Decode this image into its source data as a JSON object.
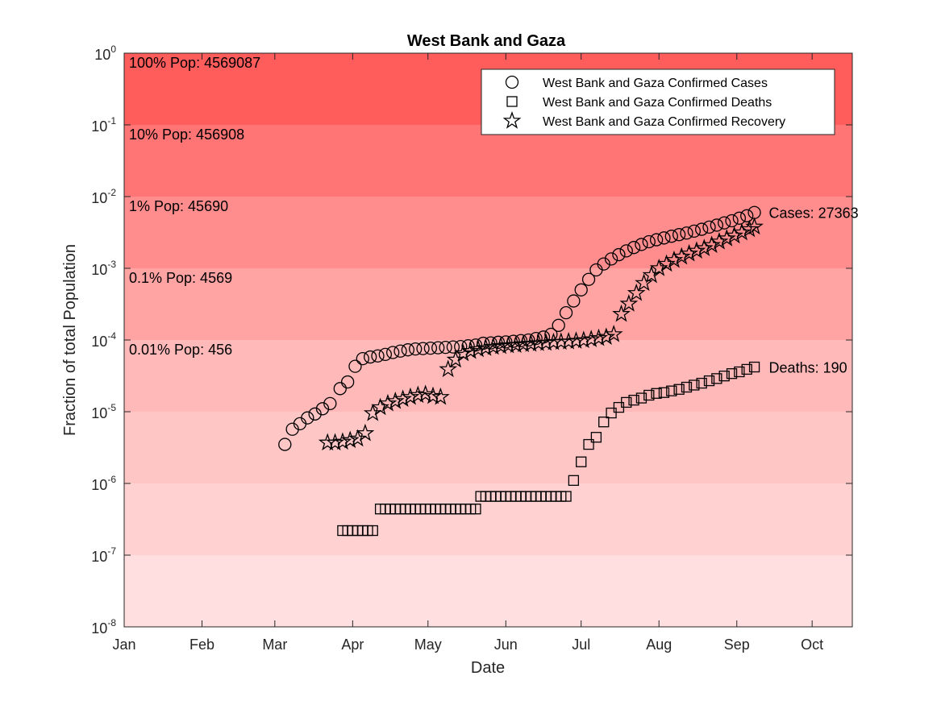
{
  "chart_data": {
    "type": "scatter",
    "title": "West Bank and Gaza",
    "xlabel": "Date",
    "ylabel": "Fraction of total Population",
    "y_scale": "log",
    "ylim": [
      1e-08,
      1
    ],
    "xlim": [
      "2020-01-01",
      "2020-10-17"
    ],
    "x_ticks": [
      {
        "date": "2020-01-01",
        "label": "Jan"
      },
      {
        "date": "2020-02-01",
        "label": "Feb"
      },
      {
        "date": "2020-03-01",
        "label": "Mar"
      },
      {
        "date": "2020-04-01",
        "label": "Apr"
      },
      {
        "date": "2020-05-01",
        "label": "May"
      },
      {
        "date": "2020-06-01",
        "label": "Jun"
      },
      {
        "date": "2020-07-01",
        "label": "Jul"
      },
      {
        "date": "2020-08-01",
        "label": "Aug"
      },
      {
        "date": "2020-09-01",
        "label": "Sep"
      },
      {
        "date": "2020-10-01",
        "label": "Oct"
      }
    ],
    "y_ticks": [
      {
        "value": 1,
        "base": "10",
        "exp": "0"
      },
      {
        "value": 0.1,
        "base": "10",
        "exp": "-1"
      },
      {
        "value": 0.01,
        "base": "10",
        "exp": "-2"
      },
      {
        "value": 0.001,
        "base": "10",
        "exp": "-3"
      },
      {
        "value": 0.0001,
        "base": "10",
        "exp": "-4"
      },
      {
        "value": 1e-05,
        "base": "10",
        "exp": "-5"
      },
      {
        "value": 1e-06,
        "base": "10",
        "exp": "-6"
      },
      {
        "value": 1e-07,
        "base": "10",
        "exp": "-7"
      },
      {
        "value": 1e-08,
        "base": "10",
        "exp": "-8"
      }
    ],
    "bands": [
      {
        "top": 1,
        "bottom": 0.1,
        "color": "#ff5c5c",
        "label": "100% Pop: 4569087"
      },
      {
        "top": 0.1,
        "bottom": 0.01,
        "color": "#ff7474",
        "label": "10% Pop: 456908"
      },
      {
        "top": 0.01,
        "bottom": 0.001,
        "color": "#ff8d8d",
        "label": "1% Pop: 45690"
      },
      {
        "top": 0.001,
        "bottom": 0.0001,
        "color": "#ffa3a3",
        "label": "0.1% Pop: 4569"
      },
      {
        "top": 0.0001,
        "bottom": 1e-05,
        "color": "#ffb9b9",
        "label": "0.01% Pop: 456"
      },
      {
        "top": 1e-05,
        "bottom": 1e-06,
        "color": "#ffc6c6",
        "label": ""
      },
      {
        "top": 1e-06,
        "bottom": 1e-07,
        "color": "#ffd1d1",
        "label": ""
      },
      {
        "top": 1e-07,
        "bottom": 1e-08,
        "color": "#ffdfdf",
        "label": ""
      }
    ],
    "legend": {
      "position": "top-right",
      "entries": [
        {
          "marker": "circle",
          "label": "West Bank and Gaza Confirmed Cases"
        },
        {
          "marker": "square",
          "label": "West Bank and Gaza Confirmed Deaths"
        },
        {
          "marker": "star",
          "label": "West Bank and Gaza Confirmed Recovery"
        }
      ]
    },
    "end_labels": [
      {
        "text": "Cases: 27363",
        "date": "2020-09-08",
        "y": 0.006
      },
      {
        "text": "Deaths: 190",
        "date": "2020-09-08",
        "y": 4.2e-05
      }
    ],
    "series": [
      {
        "marker": "circle",
        "points": [
          [
            "2020-03-05",
            3.5e-06
          ],
          [
            "2020-03-08",
            5.7e-06
          ],
          [
            "2020-03-11",
            6.8e-06
          ],
          [
            "2020-03-14",
            8.2e-06
          ],
          [
            "2020-03-17",
            9.3e-06
          ],
          [
            "2020-03-20",
            1.1e-05
          ],
          [
            "2020-03-23",
            1.3e-05
          ],
          [
            "2020-03-27",
            2.1e-05
          ],
          [
            "2020-03-30",
            2.6e-05
          ],
          [
            "2020-04-02",
            4.3e-05
          ],
          [
            "2020-04-05",
            5.5e-05
          ],
          [
            "2020-04-08",
            5.8e-05
          ],
          [
            "2020-04-11",
            6e-05
          ],
          [
            "2020-04-14",
            6.3e-05
          ],
          [
            "2020-04-17",
            6.7e-05
          ],
          [
            "2020-04-20",
            7e-05
          ],
          [
            "2020-04-23",
            7.3e-05
          ],
          [
            "2020-04-26",
            7.5e-05
          ],
          [
            "2020-04-29",
            7.6e-05
          ],
          [
            "2020-05-02",
            7.7e-05
          ],
          [
            "2020-05-05",
            7.8e-05
          ],
          [
            "2020-05-08",
            7.9e-05
          ],
          [
            "2020-05-11",
            8e-05
          ],
          [
            "2020-05-14",
            8.1e-05
          ],
          [
            "2020-05-17",
            8.3e-05
          ],
          [
            "2020-05-20",
            8.5e-05
          ],
          [
            "2020-05-23",
            9e-05
          ],
          [
            "2020-05-26",
            9.1e-05
          ],
          [
            "2020-05-29",
            9.3e-05
          ],
          [
            "2020-06-01",
            9.4e-05
          ],
          [
            "2020-06-04",
            9.6e-05
          ],
          [
            "2020-06-07",
            9.8e-05
          ],
          [
            "2020-06-10",
            0.0001
          ],
          [
            "2020-06-13",
            0.000105
          ],
          [
            "2020-06-16",
            0.00011
          ],
          [
            "2020-06-19",
            0.00012
          ],
          [
            "2020-06-22",
            0.00016
          ],
          [
            "2020-06-25",
            0.00024
          ],
          [
            "2020-06-28",
            0.00035
          ],
          [
            "2020-07-01",
            0.0005
          ],
          [
            "2020-07-04",
            0.0007
          ],
          [
            "2020-07-07",
            0.00095
          ],
          [
            "2020-07-10",
            0.00115
          ],
          [
            "2020-07-13",
            0.00135
          ],
          [
            "2020-07-16",
            0.00155
          ],
          [
            "2020-07-19",
            0.00175
          ],
          [
            "2020-07-22",
            0.00195
          ],
          [
            "2020-07-25",
            0.00215
          ],
          [
            "2020-07-28",
            0.00235
          ],
          [
            "2020-07-31",
            0.0025
          ],
          [
            "2020-08-03",
            0.00265
          ],
          [
            "2020-08-06",
            0.0028
          ],
          [
            "2020-08-09",
            0.00295
          ],
          [
            "2020-08-12",
            0.0031
          ],
          [
            "2020-08-15",
            0.0033
          ],
          [
            "2020-08-18",
            0.0035
          ],
          [
            "2020-08-21",
            0.00375
          ],
          [
            "2020-08-24",
            0.004
          ],
          [
            "2020-08-27",
            0.0043
          ],
          [
            "2020-08-30",
            0.0046
          ],
          [
            "2020-09-02",
            0.005
          ],
          [
            "2020-09-05",
            0.0054
          ],
          [
            "2020-09-08",
            0.006
          ]
        ]
      },
      {
        "marker": "square",
        "points": [
          [
            "2020-03-28",
            2.2e-07
          ],
          [
            "2020-03-30",
            2.2e-07
          ],
          [
            "2020-04-01",
            2.2e-07
          ],
          [
            "2020-04-03",
            2.2e-07
          ],
          [
            "2020-04-05",
            2.2e-07
          ],
          [
            "2020-04-07",
            2.2e-07
          ],
          [
            "2020-04-09",
            2.2e-07
          ],
          [
            "2020-04-12",
            4.4e-07
          ],
          [
            "2020-04-14",
            4.4e-07
          ],
          [
            "2020-04-16",
            4.4e-07
          ],
          [
            "2020-04-18",
            4.4e-07
          ],
          [
            "2020-04-20",
            4.4e-07
          ],
          [
            "2020-04-22",
            4.4e-07
          ],
          [
            "2020-04-24",
            4.4e-07
          ],
          [
            "2020-04-26",
            4.4e-07
          ],
          [
            "2020-04-28",
            4.4e-07
          ],
          [
            "2020-04-30",
            4.4e-07
          ],
          [
            "2020-05-02",
            4.4e-07
          ],
          [
            "2020-05-04",
            4.4e-07
          ],
          [
            "2020-05-06",
            4.4e-07
          ],
          [
            "2020-05-08",
            4.4e-07
          ],
          [
            "2020-05-10",
            4.4e-07
          ],
          [
            "2020-05-12",
            4.4e-07
          ],
          [
            "2020-05-14",
            4.4e-07
          ],
          [
            "2020-05-16",
            4.4e-07
          ],
          [
            "2020-05-18",
            4.4e-07
          ],
          [
            "2020-05-20",
            4.4e-07
          ],
          [
            "2020-05-22",
            6.6e-07
          ],
          [
            "2020-05-24",
            6.6e-07
          ],
          [
            "2020-05-26",
            6.6e-07
          ],
          [
            "2020-05-28",
            6.6e-07
          ],
          [
            "2020-05-30",
            6.6e-07
          ],
          [
            "2020-06-01",
            6.6e-07
          ],
          [
            "2020-06-03",
            6.6e-07
          ],
          [
            "2020-06-05",
            6.6e-07
          ],
          [
            "2020-06-07",
            6.6e-07
          ],
          [
            "2020-06-09",
            6.6e-07
          ],
          [
            "2020-06-11",
            6.6e-07
          ],
          [
            "2020-06-13",
            6.6e-07
          ],
          [
            "2020-06-15",
            6.6e-07
          ],
          [
            "2020-06-17",
            6.6e-07
          ],
          [
            "2020-06-19",
            6.6e-07
          ],
          [
            "2020-06-21",
            6.6e-07
          ],
          [
            "2020-06-23",
            6.6e-07
          ],
          [
            "2020-06-25",
            6.6e-07
          ],
          [
            "2020-06-28",
            1.1e-06
          ],
          [
            "2020-07-01",
            2e-06
          ],
          [
            "2020-07-04",
            3.5e-06
          ],
          [
            "2020-07-07",
            4.4e-06
          ],
          [
            "2020-07-10",
            7.2e-06
          ],
          [
            "2020-07-13",
            9.6e-06
          ],
          [
            "2020-07-16",
            1.15e-05
          ],
          [
            "2020-07-19",
            1.35e-05
          ],
          [
            "2020-07-22",
            1.45e-05
          ],
          [
            "2020-07-25",
            1.55e-05
          ],
          [
            "2020-07-28",
            1.7e-05
          ],
          [
            "2020-07-31",
            1.8e-05
          ],
          [
            "2020-08-03",
            1.85e-05
          ],
          [
            "2020-08-06",
            1.95e-05
          ],
          [
            "2020-08-09",
            2.05e-05
          ],
          [
            "2020-08-12",
            2.2e-05
          ],
          [
            "2020-08-15",
            2.35e-05
          ],
          [
            "2020-08-18",
            2.5e-05
          ],
          [
            "2020-08-21",
            2.7e-05
          ],
          [
            "2020-08-24",
            2.9e-05
          ],
          [
            "2020-08-27",
            3.15e-05
          ],
          [
            "2020-08-30",
            3.4e-05
          ],
          [
            "2020-09-02",
            3.6e-05
          ],
          [
            "2020-09-05",
            3.9e-05
          ],
          [
            "2020-09-08",
            4.2e-05
          ]
        ]
      },
      {
        "marker": "star",
        "points": [
          [
            "2020-03-22",
            3.7e-06
          ],
          [
            "2020-03-25",
            3.7e-06
          ],
          [
            "2020-03-28",
            3.8e-06
          ],
          [
            "2020-03-31",
            4e-06
          ],
          [
            "2020-04-03",
            4.2e-06
          ],
          [
            "2020-04-06",
            5e-06
          ],
          [
            "2020-04-09",
            9.5e-06
          ],
          [
            "2020-04-12",
            1.15e-05
          ],
          [
            "2020-04-15",
            1.3e-05
          ],
          [
            "2020-04-18",
            1.4e-05
          ],
          [
            "2020-04-21",
            1.5e-05
          ],
          [
            "2020-04-24",
            1.6e-05
          ],
          [
            "2020-04-27",
            1.7e-05
          ],
          [
            "2020-04-30",
            1.75e-05
          ],
          [
            "2020-05-03",
            1.65e-05
          ],
          [
            "2020-05-06",
            1.6e-05
          ],
          [
            "2020-05-09",
            3.9e-05
          ],
          [
            "2020-05-12",
            5.3e-05
          ],
          [
            "2020-05-15",
            6.5e-05
          ],
          [
            "2020-05-18",
            7e-05
          ],
          [
            "2020-05-21",
            7.4e-05
          ],
          [
            "2020-05-24",
            7.7e-05
          ],
          [
            "2020-05-27",
            8e-05
          ],
          [
            "2020-05-30",
            8.2e-05
          ],
          [
            "2020-06-02",
            8.4e-05
          ],
          [
            "2020-06-05",
            8.5e-05
          ],
          [
            "2020-06-08",
            8.7e-05
          ],
          [
            "2020-06-11",
            8.8e-05
          ],
          [
            "2020-06-14",
            9e-05
          ],
          [
            "2020-06-17",
            9.1e-05
          ],
          [
            "2020-06-20",
            9.3e-05
          ],
          [
            "2020-06-23",
            9.4e-05
          ],
          [
            "2020-06-26",
            9.5e-05
          ],
          [
            "2020-06-29",
            9.7e-05
          ],
          [
            "2020-07-02",
            9.9e-05
          ],
          [
            "2020-07-05",
            0.000102
          ],
          [
            "2020-07-08",
            0.000106
          ],
          [
            "2020-07-11",
            0.00011
          ],
          [
            "2020-07-14",
            0.00012
          ],
          [
            "2020-07-17",
            0.00023
          ],
          [
            "2020-07-20",
            0.00032
          ],
          [
            "2020-07-23",
            0.00045
          ],
          [
            "2020-07-26",
            0.00062
          ],
          [
            "2020-07-29",
            0.0008
          ],
          [
            "2020-08-01",
            0.001
          ],
          [
            "2020-08-04",
            0.00115
          ],
          [
            "2020-08-07",
            0.0013
          ],
          [
            "2020-08-10",
            0.00145
          ],
          [
            "2020-08-13",
            0.0016
          ],
          [
            "2020-08-16",
            0.00175
          ],
          [
            "2020-08-19",
            0.0019
          ],
          [
            "2020-08-22",
            0.0021
          ],
          [
            "2020-08-25",
            0.00235
          ],
          [
            "2020-08-28",
            0.0026
          ],
          [
            "2020-08-31",
            0.00285
          ],
          [
            "2020-09-03",
            0.00315
          ],
          [
            "2020-09-06",
            0.0035
          ],
          [
            "2020-09-08",
            0.0038
          ]
        ]
      }
    ]
  }
}
